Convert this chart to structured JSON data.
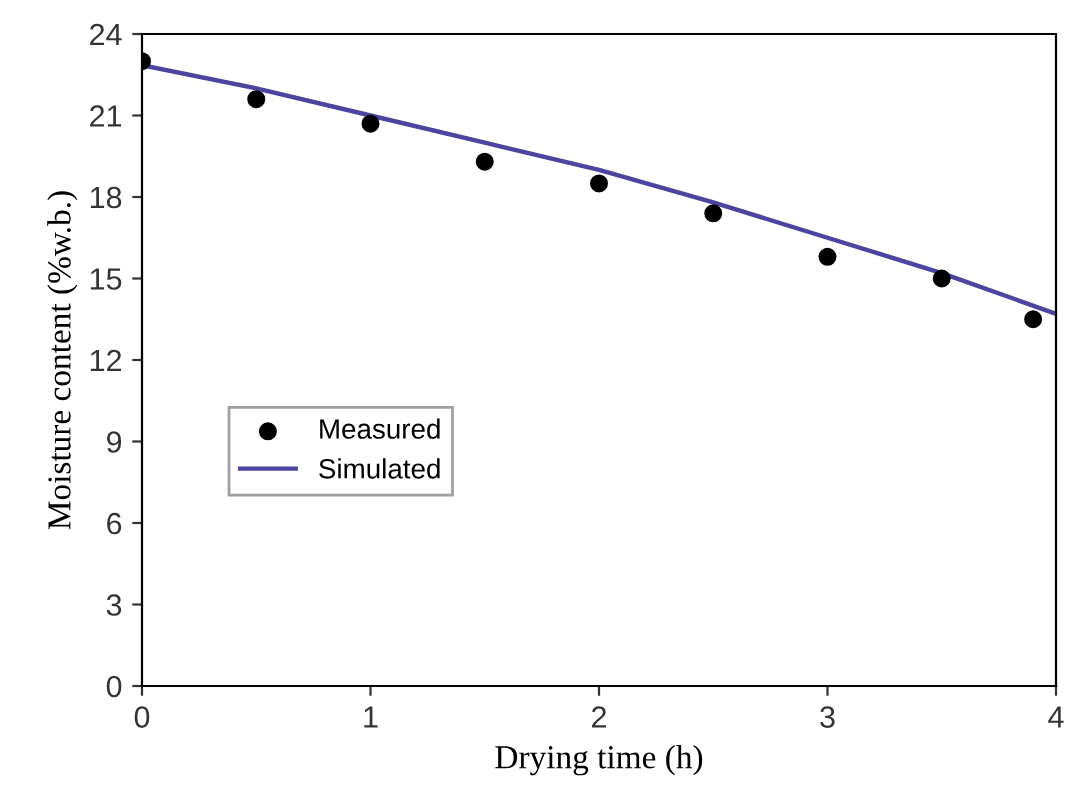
{
  "chart_data": {
    "type": "scatter",
    "xlabel": "Drying time (h)",
    "ylabel": "Moisture content (%w.b.)",
    "xlim": [
      0,
      4
    ],
    "xticks": [
      0,
      1,
      2,
      3,
      4
    ],
    "ylim": [
      0,
      24
    ],
    "yticks": [
      0,
      3,
      6,
      9,
      12,
      15,
      18,
      21,
      24
    ],
    "grid": false,
    "legend": "left",
    "series": [
      {
        "name": "Measured",
        "color": "#000000",
        "marker": "circle",
        "x": [
          0,
          0.5,
          1,
          1.5,
          2,
          2.5,
          3,
          3.5,
          3.9
        ],
        "values": [
          23.0,
          21.6,
          20.7,
          19.3,
          18.5,
          17.4,
          15.8,
          15.0,
          13.5
        ]
      },
      {
        "name": "Simulated",
        "type": "line",
        "color": "#4b45a0",
        "marker": "none",
        "x": [
          0,
          0.5,
          1,
          1.5,
          2,
          2.5,
          3,
          3.5,
          4
        ],
        "values": [
          22.85,
          22.0,
          21.0,
          20.0,
          19.0,
          17.8,
          16.5,
          15.2,
          13.7
        ]
      }
    ]
  }
}
